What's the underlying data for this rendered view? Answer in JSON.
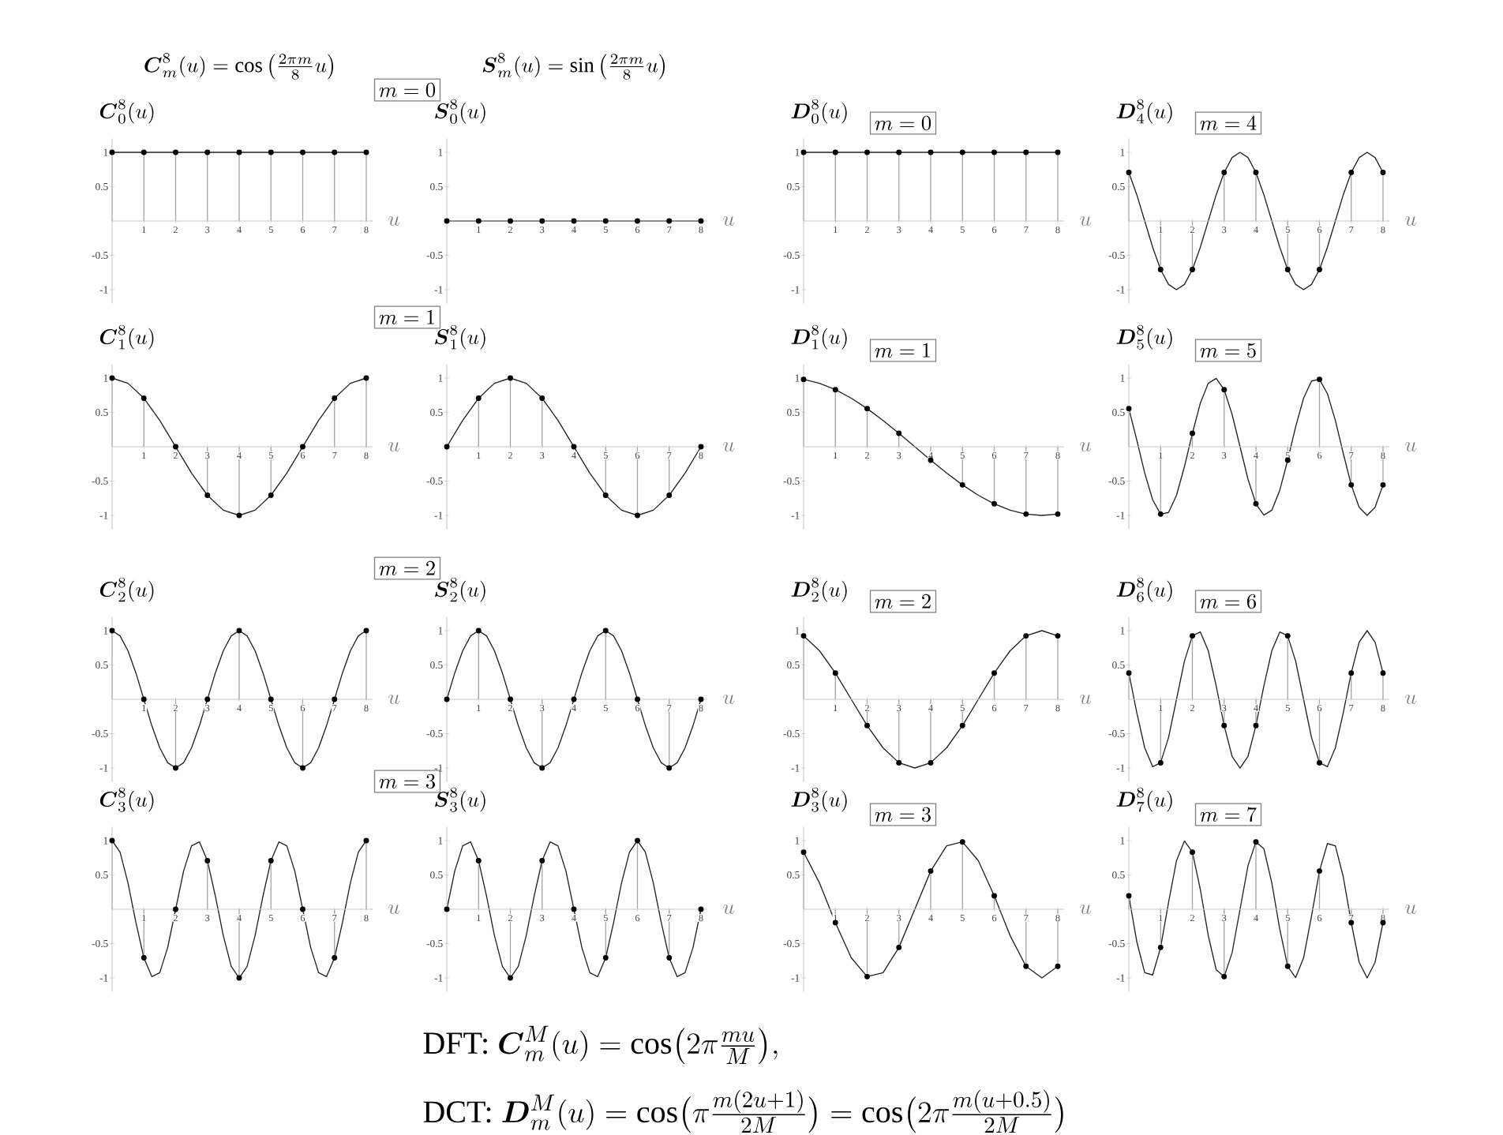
{
  "chart_data": [
    {
      "type": "lollipop",
      "title": "\\boldsymbol{C}^{8}_{0}(u)",
      "xlabel": "u",
      "xlim": [
        0,
        8.2
      ],
      "ylim": [
        -1.2,
        1.2
      ],
      "xticks": [
        1,
        2,
        3,
        4,
        5,
        6,
        7,
        8
      ],
      "yticks": [
        -1,
        -0.5,
        0.5,
        1
      ],
      "annotations": [
        "\\boldsymbol{C}^{8}_{m}(u)=\\cos\\left(\\frac{2\\pi m}{8}u\\right)",
        "m=0"
      ],
      "series": [
        {
          "type": "line",
          "color": "#222222",
          "x": [
            0,
            8
          ],
          "values": [
            1,
            1
          ]
        },
        {
          "type": "lollipop",
          "color": "#000000",
          "marker": "circle",
          "x": [
            0,
            1,
            2,
            3,
            4,
            5,
            6,
            7,
            8
          ],
          "values": [
            1,
            1,
            1,
            1,
            1,
            1,
            1,
            1,
            1
          ]
        }
      ]
    },
    {
      "type": "lollipop",
      "title": "\\boldsymbol{S}^{8}_{0}(u)",
      "xlabel": "u",
      "xlim": [
        0,
        8.2
      ],
      "ylim": [
        -1.2,
        1.2
      ],
      "xticks": [
        1,
        2,
        3,
        4,
        5,
        6,
        7,
        8
      ],
      "yticks": [
        -1,
        -0.5,
        0.5,
        1
      ],
      "annotations": [
        "\\boldsymbol{S}^{8}_{m}(u)=\\sin\\left(\\frac{2\\pi m}{8}u\\right)"
      ],
      "series": [
        {
          "type": "line",
          "color": "#222222",
          "x": [
            0,
            8
          ],
          "values": [
            0,
            0
          ]
        },
        {
          "type": "lollipop",
          "color": "#000000",
          "marker": "circle",
          "x": [
            0,
            1,
            2,
            3,
            4,
            5,
            6,
            7,
            8
          ],
          "values": [
            0,
            0,
            0,
            0,
            0,
            0,
            0,
            0,
            0
          ]
        }
      ]
    },
    {
      "type": "lollipop",
      "title": "\\boldsymbol{D}^{8}_{0}(u)",
      "xlabel": "u",
      "xlim": [
        0,
        8.2
      ],
      "ylim": [
        -1.2,
        1.2
      ],
      "xticks": [
        1,
        2,
        3,
        4,
        5,
        6,
        7,
        8
      ],
      "yticks": [
        -1,
        -0.5,
        0.5,
        1
      ],
      "annotations": [
        "m=0"
      ],
      "series": [
        {
          "type": "line",
          "color": "#222222",
          "x": [
            0,
            8
          ],
          "values": [
            1,
            1
          ]
        },
        {
          "type": "lollipop",
          "color": "#000000",
          "marker": "circle",
          "x": [
            0,
            1,
            2,
            3,
            4,
            5,
            6,
            7,
            8
          ],
          "values": [
            1,
            1,
            1,
            1,
            1,
            1,
            1,
            1,
            1
          ]
        }
      ]
    },
    {
      "type": "lollipop",
      "title": "\\boldsymbol{D}^{8}_{4}(u)",
      "xlabel": "u",
      "xlim": [
        0,
        8.2
      ],
      "ylim": [
        -1.2,
        1.2
      ],
      "xticks": [
        1,
        2,
        3,
        4,
        5,
        6,
        7,
        8
      ],
      "yticks": [
        -1,
        -0.5,
        0.5,
        1
      ],
      "annotations": [
        "m=4"
      ],
      "series": [
        {
          "type": "line",
          "color": "#222222",
          "x": [
            0,
            0.25,
            0.5,
            0.75,
            1,
            1.25,
            1.5,
            1.75,
            2,
            2.25,
            2.5,
            2.75,
            3,
            3.25,
            3.5,
            3.75,
            4,
            4.25,
            4.5,
            4.75,
            5,
            5.25,
            5.5,
            5.75,
            6,
            6.25,
            6.5,
            6.75,
            7,
            7.25,
            7.5,
            7.75,
            8
          ],
          "values": [
            0.707,
            0.383,
            0,
            -0.383,
            -0.707,
            -0.924,
            -1,
            -0.924,
            -0.707,
            -0.383,
            0,
            0.383,
            0.707,
            0.924,
            1,
            0.924,
            0.707,
            0.383,
            0,
            -0.383,
            -0.707,
            -0.924,
            -1,
            -0.924,
            -0.707,
            -0.383,
            0,
            0.383,
            0.707,
            0.924,
            1,
            0.924,
            0.707
          ]
        },
        {
          "type": "lollipop",
          "color": "#000000",
          "marker": "circle",
          "x": [
            0,
            1,
            2,
            3,
            4,
            5,
            6,
            7,
            8
          ],
          "values": [
            0.707,
            -0.707,
            -0.707,
            0.707,
            0.707,
            -0.707,
            -0.707,
            0.707,
            0.707
          ]
        }
      ]
    },
    {
      "type": "lollipop",
      "title": "\\boldsymbol{C}^{8}_{1}(u)",
      "xlabel": "u",
      "xlim": [
        0,
        8.2
      ],
      "ylim": [
        -1.2,
        1.2
      ],
      "xticks": [
        1,
        2,
        3,
        4,
        5,
        6,
        7,
        8
      ],
      "yticks": [
        -1,
        -0.5,
        0.5,
        1
      ],
      "annotations": [
        "m=1"
      ],
      "series": [
        {
          "type": "line",
          "color": "#222222",
          "x": [
            0,
            0.5,
            1,
            1.5,
            2,
            2.5,
            3,
            3.5,
            4,
            4.5,
            5,
            5.5,
            6,
            6.5,
            7,
            7.5,
            8
          ],
          "values": [
            1,
            0.924,
            0.707,
            0.383,
            0,
            -0.383,
            -0.707,
            -0.924,
            -1,
            -0.924,
            -0.707,
            -0.383,
            0,
            0.383,
            0.707,
            0.924,
            1
          ]
        },
        {
          "type": "lollipop",
          "color": "#000000",
          "marker": "circle",
          "x": [
            0,
            1,
            2,
            3,
            4,
            5,
            6,
            7,
            8
          ],
          "values": [
            1,
            0.707,
            0,
            -0.707,
            -1,
            -0.707,
            0,
            0.707,
            1
          ]
        }
      ]
    },
    {
      "type": "lollipop",
      "title": "\\boldsymbol{S}^{8}_{1}(u)",
      "xlabel": "u",
      "xlim": [
        0,
        8.2
      ],
      "ylim": [
        -1.2,
        1.2
      ],
      "xticks": [
        1,
        2,
        3,
        4,
        5,
        6,
        7,
        8
      ],
      "yticks": [
        -1,
        -0.5,
        0.5,
        1
      ],
      "series": [
        {
          "type": "line",
          "color": "#222222",
          "x": [
            0,
            0.5,
            1,
            1.5,
            2,
            2.5,
            3,
            3.5,
            4,
            4.5,
            5,
            5.5,
            6,
            6.5,
            7,
            7.5,
            8
          ],
          "values": [
            0,
            0.383,
            0.707,
            0.924,
            1,
            0.924,
            0.707,
            0.383,
            0,
            -0.383,
            -0.707,
            -0.924,
            -1,
            -0.924,
            -0.707,
            -0.383,
            0
          ]
        },
        {
          "type": "lollipop",
          "color": "#000000",
          "marker": "circle",
          "x": [
            0,
            1,
            2,
            3,
            4,
            5,
            6,
            7,
            8
          ],
          "values": [
            0,
            0.707,
            1,
            0.707,
            0,
            -0.707,
            -1,
            -0.707,
            0
          ]
        }
      ]
    },
    {
      "type": "lollipop",
      "title": "\\boldsymbol{D}^{8}_{1}(u)",
      "xlabel": "u",
      "xlim": [
        0,
        8.2
      ],
      "ylim": [
        -1.2,
        1.2
      ],
      "xticks": [
        1,
        2,
        3,
        4,
        5,
        6,
        7,
        8
      ],
      "yticks": [
        -1,
        -0.5,
        0.5,
        1
      ],
      "annotations": [
        "m=1"
      ],
      "series": [
        {
          "type": "line",
          "color": "#222222",
          "x": [
            0,
            0.5,
            1,
            1.5,
            2,
            2.5,
            3,
            3.5,
            4,
            4.5,
            5,
            5.5,
            6,
            6.5,
            7,
            7.5,
            8
          ],
          "values": [
            0.981,
            0.924,
            0.831,
            0.707,
            0.556,
            0.383,
            0.195,
            0,
            -0.195,
            -0.383,
            -0.556,
            -0.707,
            -0.831,
            -0.924,
            -0.981,
            -1,
            -0.981
          ]
        },
        {
          "type": "lollipop",
          "color": "#000000",
          "marker": "circle",
          "x": [
            0,
            1,
            2,
            3,
            4,
            5,
            6,
            7,
            8
          ],
          "values": [
            0.981,
            0.831,
            0.556,
            0.195,
            -0.195,
            -0.556,
            -0.831,
            -0.981,
            -0.981
          ]
        }
      ]
    },
    {
      "type": "lollipop",
      "title": "\\boldsymbol{D}^{8}_{5}(u)",
      "xlabel": "u",
      "xlim": [
        0,
        8.2
      ],
      "ylim": [
        -1.2,
        1.2
      ],
      "xticks": [
        1,
        2,
        3,
        4,
        5,
        6,
        7,
        8
      ],
      "yticks": [
        -1,
        -0.5,
        0.5,
        1
      ],
      "annotations": [
        "m=5"
      ],
      "series": [
        {
          "type": "line",
          "color": "#222222",
          "x": [
            0,
            0.25,
            0.5,
            0.75,
            1,
            1.25,
            1.5,
            1.75,
            2,
            2.25,
            2.5,
            2.75,
            3,
            3.25,
            3.5,
            3.75,
            4,
            4.25,
            4.5,
            4.75,
            5,
            5.25,
            5.5,
            5.75,
            6,
            6.25,
            6.5,
            6.75,
            7,
            7.25,
            7.5,
            7.75,
            8
          ],
          "values": [
            0.556,
            0.098,
            -0.383,
            -0.773,
            -0.981,
            -0.957,
            -0.707,
            -0.29,
            0.195,
            0.634,
            0.924,
            0.995,
            0.831,
            0.471,
            0,
            -0.471,
            -0.831,
            -0.995,
            -0.924,
            -0.634,
            -0.195,
            0.29,
            0.707,
            0.957,
            0.981,
            0.773,
            0.383,
            -0.098,
            -0.556,
            -0.882,
            -1,
            -0.882,
            -0.556
          ]
        },
        {
          "type": "lollipop",
          "color": "#000000",
          "marker": "circle",
          "x": [
            0,
            1,
            2,
            3,
            4,
            5,
            6,
            7,
            8
          ],
          "values": [
            0.556,
            -0.981,
            0.195,
            0.831,
            -0.831,
            -0.195,
            0.981,
            -0.556,
            -0.556
          ]
        }
      ]
    },
    {
      "type": "lollipop",
      "title": "\\boldsymbol{C}^{8}_{2}(u)",
      "xlabel": "u",
      "xlim": [
        0,
        8.2
      ],
      "ylim": [
        -1.2,
        1.2
      ],
      "xticks": [
        1,
        2,
        3,
        4,
        5,
        6,
        7,
        8
      ],
      "yticks": [
        -1,
        -0.5,
        0.5,
        1
      ],
      "annotations": [
        "m=2"
      ],
      "series": [
        {
          "type": "line",
          "color": "#222222",
          "x": [
            0,
            0.25,
            0.5,
            0.75,
            1,
            1.25,
            1.5,
            1.75,
            2,
            2.25,
            2.5,
            2.75,
            3,
            3.25,
            3.5,
            3.75,
            4,
            4.25,
            4.5,
            4.75,
            5,
            5.25,
            5.5,
            5.75,
            6,
            6.25,
            6.5,
            6.75,
            7,
            7.25,
            7.5,
            7.75,
            8
          ],
          "values": [
            1,
            0.924,
            0.707,
            0.383,
            0,
            -0.383,
            -0.707,
            -0.924,
            -1,
            -0.924,
            -0.707,
            -0.383,
            0,
            0.383,
            0.707,
            0.924,
            1,
            0.924,
            0.707,
            0.383,
            0,
            -0.383,
            -0.707,
            -0.924,
            -1,
            -0.924,
            -0.707,
            -0.383,
            0,
            0.383,
            0.707,
            0.924,
            1
          ]
        },
        {
          "type": "lollipop",
          "color": "#000000",
          "marker": "circle",
          "x": [
            0,
            1,
            2,
            3,
            4,
            5,
            6,
            7,
            8
          ],
          "values": [
            1,
            0,
            -1,
            0,
            1,
            0,
            -1,
            0,
            1
          ]
        }
      ]
    },
    {
      "type": "lollipop",
      "title": "\\boldsymbol{S}^{8}_{2}(u)",
      "xlabel": "u",
      "xlim": [
        0,
        8.2
      ],
      "ylim": [
        -1.2,
        1.2
      ],
      "xticks": [
        1,
        2,
        3,
        4,
        5,
        6,
        7,
        8
      ],
      "yticks": [
        -1,
        -0.5,
        0.5,
        1
      ],
      "series": [
        {
          "type": "line",
          "color": "#222222",
          "x": [
            0,
            0.25,
            0.5,
            0.75,
            1,
            1.25,
            1.5,
            1.75,
            2,
            2.25,
            2.5,
            2.75,
            3,
            3.25,
            3.5,
            3.75,
            4,
            4.25,
            4.5,
            4.75,
            5,
            5.25,
            5.5,
            5.75,
            6,
            6.25,
            6.5,
            6.75,
            7,
            7.25,
            7.5,
            7.75,
            8
          ],
          "values": [
            0,
            0.383,
            0.707,
            0.924,
            1,
            0.924,
            0.707,
            0.383,
            0,
            -0.383,
            -0.707,
            -0.924,
            -1,
            -0.924,
            -0.707,
            -0.383,
            0,
            0.383,
            0.707,
            0.924,
            1,
            0.924,
            0.707,
            0.383,
            0,
            -0.383,
            -0.707,
            -0.924,
            -1,
            -0.924,
            -0.707,
            -0.383,
            0
          ]
        },
        {
          "type": "lollipop",
          "color": "#000000",
          "marker": "circle",
          "x": [
            0,
            1,
            2,
            3,
            4,
            5,
            6,
            7,
            8
          ],
          "values": [
            0,
            1,
            0,
            -1,
            0,
            1,
            0,
            -1,
            0
          ]
        }
      ]
    },
    {
      "type": "lollipop",
      "title": "\\boldsymbol{D}^{8}_{2}(u)",
      "xlabel": "u",
      "xlim": [
        0,
        8.2
      ],
      "ylim": [
        -1.2,
        1.2
      ],
      "xticks": [
        1,
        2,
        3,
        4,
        5,
        6,
        7,
        8
      ],
      "yticks": [
        -1,
        -0.5,
        0.5,
        1
      ],
      "annotations": [
        "m=2"
      ],
      "series": [
        {
          "type": "line",
          "color": "#222222",
          "x": [
            0,
            0.5,
            1,
            1.5,
            2,
            2.5,
            3,
            3.5,
            4,
            4.5,
            5,
            5.5,
            6,
            6.5,
            7,
            7.5,
            8
          ],
          "values": [
            0.924,
            0.707,
            0.383,
            0,
            -0.383,
            -0.707,
            -0.924,
            -1,
            -0.924,
            -0.707,
            -0.383,
            0,
            0.383,
            0.707,
            0.924,
            1,
            0.924
          ]
        },
        {
          "type": "lollipop",
          "color": "#000000",
          "marker": "circle",
          "x": [
            0,
            1,
            2,
            3,
            4,
            5,
            6,
            7,
            8
          ],
          "values": [
            0.924,
            0.383,
            -0.383,
            -0.924,
            -0.924,
            -0.383,
            0.383,
            0.924,
            0.924
          ]
        }
      ]
    },
    {
      "type": "lollipop",
      "title": "\\boldsymbol{D}^{8}_{6}(u)",
      "xlabel": "u",
      "xlim": [
        0,
        8.2
      ],
      "ylim": [
        -1.2,
        1.2
      ],
      "xticks": [
        1,
        2,
        3,
        4,
        5,
        6,
        7,
        8
      ],
      "yticks": [
        -1,
        -0.5,
        0.5,
        1
      ],
      "annotations": [
        "m=6"
      ],
      "series": [
        {
          "type": "line",
          "color": "#222222",
          "x": [
            0,
            0.25,
            0.5,
            0.75,
            1,
            1.25,
            1.5,
            1.75,
            2,
            2.25,
            2.5,
            2.75,
            3,
            3.25,
            3.5,
            3.75,
            4,
            4.25,
            4.5,
            4.75,
            5,
            5.25,
            5.5,
            5.75,
            6,
            6.25,
            6.5,
            6.75,
            7,
            7.25,
            7.5,
            7.75,
            8
          ],
          "values": [
            0.383,
            -0.195,
            -0.707,
            -0.981,
            -0.924,
            -0.556,
            0,
            0.556,
            0.924,
            0.981,
            0.707,
            0.195,
            -0.383,
            -0.831,
            -1,
            -0.831,
            -0.383,
            0.195,
            0.707,
            0.981,
            0.924,
            0.556,
            0,
            -0.556,
            -0.924,
            -0.981,
            -0.707,
            -0.195,
            0.383,
            0.831,
            1,
            0.831,
            0.383
          ]
        },
        {
          "type": "lollipop",
          "color": "#000000",
          "marker": "circle",
          "x": [
            0,
            1,
            2,
            3,
            4,
            5,
            6,
            7,
            8
          ],
          "values": [
            0.383,
            -0.924,
            0.924,
            -0.383,
            -0.383,
            0.924,
            -0.924,
            0.383,
            0.383
          ]
        }
      ]
    },
    {
      "type": "lollipop",
      "title": "\\boldsymbol{C}^{8}_{3}(u)",
      "xlabel": "u",
      "xlim": [
        0,
        8.2
      ],
      "ylim": [
        -1.2,
        1.2
      ],
      "xticks": [
        1,
        2,
        3,
        4,
        5,
        6,
        7,
        8
      ],
      "yticks": [
        -1,
        -0.5,
        0.5,
        1
      ],
      "annotations": [
        "m=3",
        "\\text{DFT: }\\boldsymbol{C}^{M}_{m}(u)=\\cos\\bigl(2\\pi\\frac{mu}{M}\\bigr),",
        "\\text{DCT: }\\boldsymbol{D}^{M}_{m}(u)=\\cos\\bigl(\\pi\\frac{m(2u+1)}{2M}\\bigr)=\\cos\\bigl(2\\pi\\frac{m(u+0.5)}{2M}\\bigr)"
      ],
      "series": [
        {
          "type": "line",
          "color": "#222222",
          "x": [
            0,
            0.25,
            0.5,
            0.75,
            1,
            1.25,
            1.5,
            1.75,
            2,
            2.25,
            2.5,
            2.75,
            3,
            3.25,
            3.5,
            3.75,
            4,
            4.25,
            4.5,
            4.75,
            5,
            5.25,
            5.5,
            5.75,
            6,
            6.25,
            6.5,
            6.75,
            7,
            7.25,
            7.5,
            7.75,
            8
          ],
          "values": [
            1,
            0.831,
            0.383,
            -0.195,
            -0.707,
            -0.981,
            -0.924,
            -0.556,
            0,
            0.556,
            0.924,
            0.981,
            0.707,
            0.195,
            -0.383,
            -0.831,
            -1,
            -0.831,
            -0.383,
            0.195,
            0.707,
            0.981,
            0.924,
            0.556,
            0,
            -0.556,
            -0.924,
            -0.981,
            -0.707,
            -0.195,
            0.383,
            0.831,
            1
          ]
        },
        {
          "type": "lollipop",
          "color": "#000000",
          "marker": "circle",
          "x": [
            0,
            1,
            2,
            3,
            4,
            5,
            6,
            7,
            8
          ],
          "values": [
            1,
            -0.707,
            0,
            0.707,
            -1,
            0.707,
            0,
            -0.707,
            1
          ]
        }
      ]
    },
    {
      "type": "lollipop",
      "title": "\\boldsymbol{S}^{8}_{3}(u)",
      "xlabel": "u",
      "xlim": [
        0,
        8.2
      ],
      "ylim": [
        -1.2,
        1.2
      ],
      "xticks": [
        1,
        2,
        3,
        4,
        5,
        6,
        7,
        8
      ],
      "yticks": [
        -1,
        -0.5,
        0.5,
        1
      ],
      "series": [
        {
          "type": "line",
          "color": "#222222",
          "x": [
            0,
            0.25,
            0.5,
            0.75,
            1,
            1.25,
            1.5,
            1.75,
            2,
            2.25,
            2.5,
            2.75,
            3,
            3.25,
            3.5,
            3.75,
            4,
            4.25,
            4.5,
            4.75,
            5,
            5.25,
            5.5,
            5.75,
            6,
            6.25,
            6.5,
            6.75,
            7,
            7.25,
            7.5,
            7.75,
            8
          ],
          "values": [
            0,
            0.556,
            0.924,
            0.981,
            0.707,
            0.195,
            -0.383,
            -0.831,
            -1,
            -0.831,
            -0.383,
            0.195,
            0.707,
            0.981,
            0.924,
            0.556,
            0,
            -0.556,
            -0.924,
            -0.981,
            -0.707,
            -0.195,
            0.383,
            0.831,
            1,
            0.831,
            0.383,
            -0.195,
            -0.707,
            -0.981,
            -0.924,
            -0.556,
            0
          ]
        },
        {
          "type": "lollipop",
          "color": "#000000",
          "marker": "circle",
          "x": [
            0,
            1,
            2,
            3,
            4,
            5,
            6,
            7,
            8
          ],
          "values": [
            0,
            0.707,
            -1,
            0.707,
            0,
            -0.707,
            1,
            -0.707,
            0
          ]
        }
      ]
    },
    {
      "type": "lollipop",
      "title": "\\boldsymbol{D}^{8}_{3}(u)",
      "xlabel": "u",
      "xlim": [
        0,
        8.2
      ],
      "ylim": [
        -1.2,
        1.2
      ],
      "xticks": [
        1,
        2,
        3,
        4,
        5,
        6,
        7,
        8
      ],
      "yticks": [
        -1,
        -0.5,
        0.5,
        1
      ],
      "annotations": [
        "m=3"
      ],
      "series": [
        {
          "type": "line",
          "color": "#222222",
          "x": [
            0,
            0.5,
            1,
            1.5,
            2,
            2.5,
            3,
            3.5,
            4,
            4.5,
            5,
            5.5,
            6,
            6.5,
            7,
            7.5,
            8
          ],
          "values": [
            0.831,
            0.383,
            -0.195,
            -0.707,
            -0.981,
            -0.924,
            -0.556,
            0,
            0.556,
            0.924,
            0.981,
            0.707,
            0.195,
            -0.383,
            -0.831,
            -1,
            -0.831
          ]
        },
        {
          "type": "lollipop",
          "color": "#000000",
          "marker": "circle",
          "x": [
            0,
            1,
            2,
            3,
            4,
            5,
            6,
            7,
            8
          ],
          "values": [
            0.831,
            -0.195,
            -0.981,
            -0.556,
            0.556,
            0.981,
            0.195,
            -0.831,
            -0.831
          ]
        }
      ]
    },
    {
      "type": "lollipop",
      "title": "\\boldsymbol{D}^{8}_{7}(u)",
      "xlabel": "u",
      "xlim": [
        0,
        8.2
      ],
      "ylim": [
        -1.2,
        1.2
      ],
      "xticks": [
        1,
        2,
        3,
        4,
        5,
        6,
        7,
        8
      ],
      "yticks": [
        -1,
        -0.5,
        0.5,
        1
      ],
      "annotations": [
        "m=7"
      ],
      "series": [
        {
          "type": "line",
          "color": "#222222",
          "x": [
            0,
            0.25,
            0.5,
            0.75,
            1,
            1.25,
            1.5,
            1.75,
            2,
            2.25,
            2.5,
            2.75,
            3,
            3.25,
            3.5,
            3.75,
            4,
            4.25,
            4.5,
            4.75,
            5,
            5.25,
            5.5,
            5.75,
            6,
            6.25,
            6.5,
            6.75,
            7,
            7.25,
            7.5,
            7.75,
            8
          ],
          "values": [
            0.195,
            -0.471,
            -0.924,
            -0.957,
            -0.556,
            0.098,
            0.707,
            0.995,
            0.831,
            0.29,
            -0.383,
            -0.882,
            -0.981,
            -0.634,
            0,
            0.634,
            0.981,
            0.882,
            0.383,
            -0.29,
            -0.831,
            -0.995,
            -0.707,
            -0.098,
            0.556,
            0.957,
            0.924,
            0.471,
            -0.195,
            -0.773,
            -1,
            -0.773,
            -0.195
          ]
        },
        {
          "type": "lollipop",
          "color": "#000000",
          "marker": "circle",
          "x": [
            0,
            1,
            2,
            3,
            4,
            5,
            6,
            7,
            8
          ],
          "values": [
            0.195,
            -0.556,
            0.831,
            -0.981,
            0.981,
            -0.831,
            0.556,
            -0.195,
            -0.195
          ]
        }
      ]
    }
  ]
}
